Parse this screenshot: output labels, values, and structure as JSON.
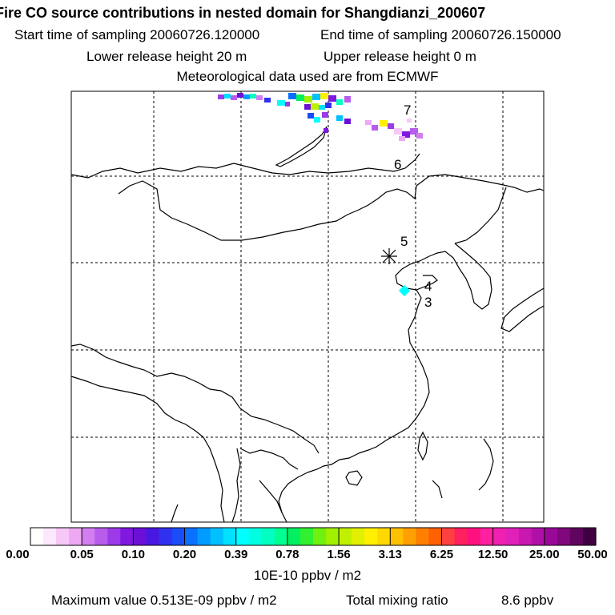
{
  "header": {
    "title": "Fire CO source contributions in nested domain for Shangdianzi_200607",
    "start_label": "Start time of sampling 20060726.120000",
    "end_label": "End time of sampling 20060726.150000",
    "lower_label": "Lower release height   20 m",
    "upper_label": "Upper release height    0 m",
    "met_label": "Meteorological data used are from ECMWF"
  },
  "map": {
    "trajectory_labels": [
      "7",
      "6",
      "5",
      "4",
      "3"
    ],
    "station_marker": "Shangdianzi receptor (asterisk)"
  },
  "colorbar": {
    "tick_labels": [
      "0.00",
      "0.05",
      "0.10",
      "0.20",
      "0.39",
      "0.78",
      "1.56",
      "3.13",
      "6.25",
      "12.50",
      "25.00",
      "50.00"
    ],
    "unit": "10E-10 ppbv / m2",
    "colors": [
      "#ffffff",
      "#fce8fc",
      "#f6c8f8",
      "#eea8f4",
      "#d37ef0",
      "#b85cec",
      "#9d3ae8",
      "#8018e0",
      "#6c10d8",
      "#4818e0",
      "#3030f0",
      "#1a4cf8",
      "#0a70ff",
      "#009cff",
      "#00c0ff",
      "#00e0ff",
      "#00ffff",
      "#00ffe0",
      "#00ffc0",
      "#00ff90",
      "#00f060",
      "#30f030",
      "#70f010",
      "#a0f000",
      "#c0f000",
      "#e0f000",
      "#fff000",
      "#ffd800",
      "#ffc000",
      "#ffa000",
      "#ff8000",
      "#ff6000",
      "#ff4040",
      "#ff2060",
      "#ff1080",
      "#ff20a0",
      "#f020b0",
      "#e020b8",
      "#c818b0",
      "#b010a8",
      "#9a0898",
      "#80087c",
      "#600460",
      "#400040"
    ]
  },
  "footer": {
    "max_label": "Maximum value  0.513E-09 ppbv / m2",
    "total_label": "Total mixing ratio",
    "total_value": "8.6 ppbv"
  }
}
